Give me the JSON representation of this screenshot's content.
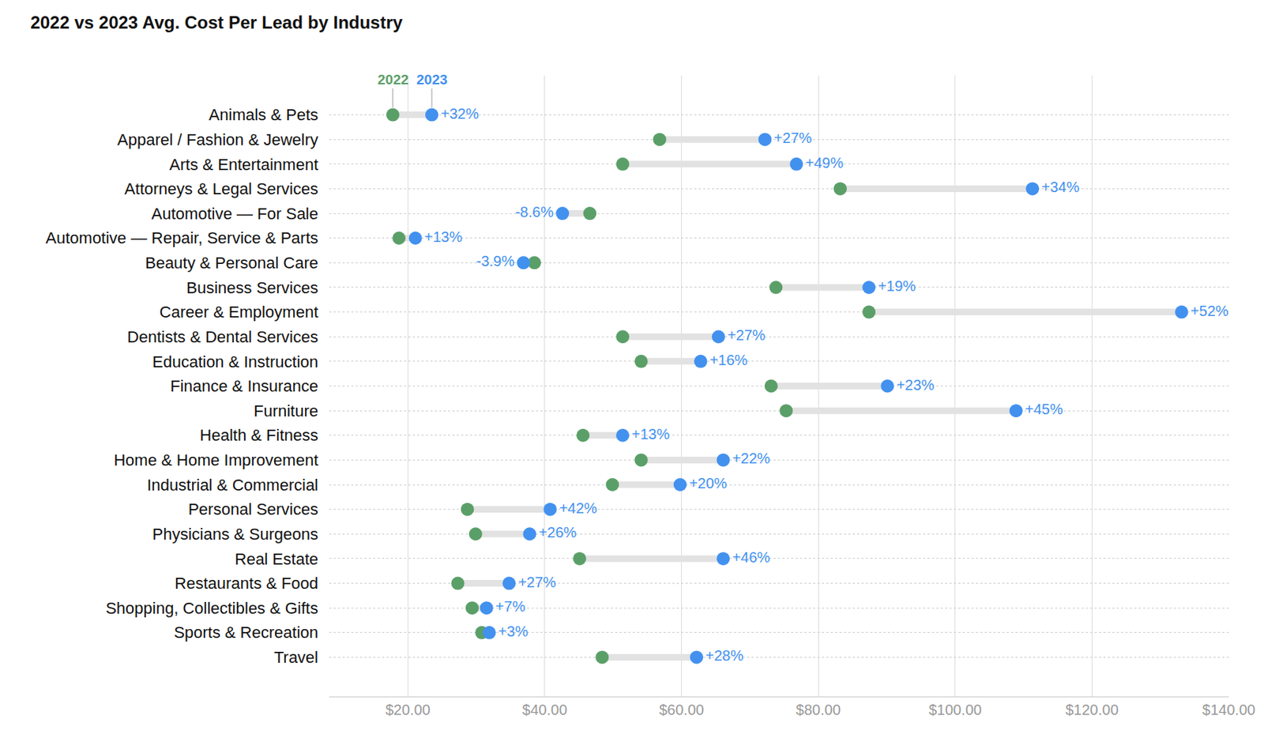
{
  "chart_data": {
    "type": "dumbbell",
    "title": "2022 vs 2023 Avg. Cost Per Lead by Industry",
    "categories": [
      "Animals & Pets",
      "Apparel / Fashion & Jewelry",
      "Arts & Entertainment",
      "Attorneys & Legal Services",
      "Automotive — For Sale",
      "Automotive — Repair, Service & Parts",
      "Beauty & Personal Care",
      "Business Services",
      "Career & Employment",
      "Dentists & Dental Services",
      "Education & Instruction",
      "Finance & Insurance",
      "Furniture",
      "Health & Fitness",
      "Home & Home Improvement",
      "Industrial & Commercial",
      "Personal Services",
      "Physicians & Surgeons",
      "Real Estate",
      "Restaurants & Food",
      "Shopping, Collectibles & Gifts",
      "Sports & Recreation",
      "Travel"
    ],
    "series": [
      {
        "name": "2022",
        "color": "#5b9f68",
        "values": [
          17.8,
          56.8,
          51.4,
          83.2,
          46.6,
          18.7,
          38.5,
          73.8,
          87.4,
          51.4,
          54.1,
          73.1,
          75.3,
          45.6,
          54.1,
          49.9,
          28.7,
          29.9,
          45.1,
          27.3,
          29.4,
          30.8,
          48.4
        ]
      },
      {
        "name": "2023",
        "color": "#4291ef",
        "values": [
          23.5,
          72.2,
          76.8,
          111.3,
          42.6,
          21.1,
          36.9,
          87.4,
          133.1,
          65.4,
          62.8,
          90.1,
          108.9,
          51.4,
          66.1,
          59.8,
          40.8,
          37.8,
          66.1,
          34.8,
          31.5,
          31.9,
          62.2
        ]
      }
    ],
    "changes": {
      "values": [
        32,
        27,
        49,
        34,
        -8.6,
        13,
        -3.9,
        19,
        52,
        27,
        16,
        23,
        45,
        13,
        22,
        20,
        42,
        26,
        46,
        27,
        7,
        3,
        28
      ],
      "value_labels": [
        "+32%",
        "+27%",
        "+49%",
        "+34%",
        "-8.6%",
        "+13%",
        "-3.9%",
        "+19%",
        "+52%",
        "+27%",
        "+16%",
        "+23%",
        "+45%",
        "+13%",
        "+22%",
        "+20%",
        "+42%",
        "+26%",
        "+46%",
        "+27%",
        "+7%",
        "+3%",
        "+28%"
      ]
    },
    "xlim": [
      8.5,
      140
    ],
    "xticks": [
      {
        "value": 20,
        "label": "$20.00"
      },
      {
        "value": 40,
        "label": "$40.00"
      },
      {
        "value": 60,
        "label": "$60.00"
      },
      {
        "value": 80,
        "label": "$80.00"
      },
      {
        "value": 100,
        "label": "$100.00"
      },
      {
        "value": 120,
        "label": "$120.00"
      },
      {
        "value": 140,
        "label": "$140.00"
      }
    ],
    "grid": true
  }
}
